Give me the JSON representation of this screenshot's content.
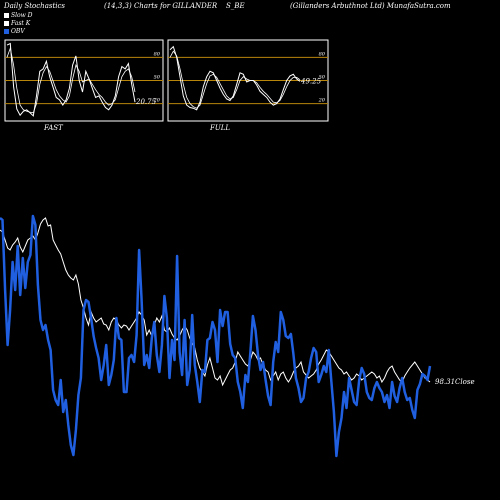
{
  "header": {
    "title_left": "Daily Stochastics",
    "title_params": "(14,3,3) Charts for GILLANDER",
    "title_symbol": "S_BE",
    "title_company": "(Gillanders Arbuthnot Ltd) MunafaSutra.com"
  },
  "legend": [
    {
      "label": "Slow  D",
      "color": "#ffffff"
    },
    {
      "label": "Fast K",
      "color": "#ffffff"
    },
    {
      "label": "OBV",
      "color": "#1f5fe0"
    }
  ],
  "colors": {
    "background": "#000000",
    "obv": "#1f5fe0",
    "price": "#ffffff",
    "bands": "#b8860b"
  },
  "chart_data": [
    {
      "type": "line",
      "panel": "FAST",
      "title": "FAST",
      "ylim": [
        0,
        100
      ],
      "ticks": [
        20,
        50,
        80
      ],
      "last_value_label": "20.75",
      "series": [
        {
          "name": "Fast K",
          "values": [
            96,
            98,
            42,
            13,
            5,
            10,
            12,
            8,
            4,
            30,
            62,
            65,
            75,
            55,
            42,
            28,
            25,
            18,
            25,
            40,
            70,
            82,
            50,
            35,
            62,
            52,
            40,
            28,
            30,
            22,
            15,
            12,
            18,
            30,
            55,
            68,
            65,
            72,
            45,
            22
          ]
        },
        {
          "name": "Slow  D",
          "values": [
            80,
            92,
            70,
            40,
            18,
            12,
            10,
            9,
            8,
            20,
            45,
            60,
            68,
            62,
            50,
            38,
            30,
            25,
            22,
            30,
            52,
            70,
            62,
            48,
            50,
            52,
            45,
            38,
            32,
            28,
            22,
            18,
            20,
            25,
            40,
            55,
            62,
            65,
            55,
            35
          ]
        }
      ]
    },
    {
      "type": "line",
      "panel": "FULL",
      "title": "FULL",
      "ylim": [
        0,
        100
      ],
      "ticks": [
        20,
        50,
        80
      ],
      "last_value_label": "49.25",
      "series": [
        {
          "name": "Full K",
          "values": [
            90,
            94,
            80,
            55,
            30,
            18,
            15,
            14,
            12,
            22,
            42,
            55,
            62,
            60,
            50,
            40,
            32,
            26,
            24,
            30,
            45,
            60,
            58,
            48,
            50,
            50,
            44,
            36,
            32,
            28,
            22,
            18,
            20,
            26,
            38,
            50,
            56,
            58,
            52,
            49
          ]
        },
        {
          "name": "Full D",
          "values": [
            80,
            88,
            82,
            65,
            45,
            28,
            20,
            16,
            14,
            18,
            32,
            46,
            56,
            58,
            54,
            46,
            38,
            30,
            26,
            28,
            38,
            50,
            55,
            52,
            50,
            50,
            47,
            41,
            36,
            32,
            27,
            22,
            21,
            24,
            32,
            42,
            50,
            54,
            54,
            51
          ]
        }
      ]
    },
    {
      "type": "line",
      "panel": "MAIN",
      "last_value_label": "98.31",
      "last_value_suffix": "Close",
      "series": [
        {
          "name": "OBV",
          "values": [
            218,
            220,
            290,
            345,
            310,
            262,
            290,
            246,
            295,
            258,
            288,
            262,
            255,
            216,
            225,
            285,
            320,
            330,
            325,
            340,
            350,
            390,
            400,
            405,
            380,
            412,
            400,
            425,
            445,
            455,
            430,
            395,
            378,
            310,
            300,
            302,
            318,
            336,
            348,
            358,
            380,
            365,
            345,
            385,
            375,
            360,
            318,
            338,
            340,
            392,
            392,
            358,
            355,
            362,
            335,
            250,
            300,
            365,
            355,
            368,
            338,
            322,
            355,
            372,
            345,
            296,
            318,
            378,
            340,
            360,
            256,
            352,
            375,
            320,
            385,
            370,
            315,
            365,
            382,
            402,
            370,
            372,
            340,
            338,
            322,
            330,
            362,
            310,
            326,
            312,
            312,
            344,
            355,
            358,
            382,
            392,
            408,
            375,
            382,
            352,
            316,
            330,
            355,
            370,
            362,
            380,
            396,
            405,
            362,
            342,
            352,
            312,
            320,
            336,
            338,
            334,
            354,
            378,
            388,
            402,
            398,
            378,
            372,
            358,
            348,
            352,
            382,
            375,
            366,
            372,
            350,
            382,
            412,
            456,
            432,
            418,
            392,
            408,
            378,
            390,
            402,
            405,
            380,
            368,
            374,
            392,
            398,
            400,
            388,
            382,
            388,
            392,
            402,
            395,
            408,
            382,
            396,
            402,
            388,
            378,
            392,
            400,
            398,
            410,
            418,
            390,
            384,
            374,
            376,
            380,
            366
          ]
        }
      ]
    },
    {
      "type": "line",
      "panel": "MAIN",
      "series": [
        {
          "name": "Price",
          "values": [
            230,
            232,
            240,
            248,
            250,
            245,
            242,
            238,
            247,
            252,
            246,
            240,
            238,
            236,
            240,
            233,
            224,
            220,
            218,
            226,
            225,
            240,
            245,
            250,
            254,
            262,
            270,
            275,
            278,
            280,
            275,
            284,
            300,
            308,
            318,
            325,
            312,
            318,
            322,
            320,
            318,
            324,
            325,
            330,
            322,
            318,
            320,
            325,
            328,
            325,
            326,
            330,
            326,
            322,
            318,
            312,
            315,
            320,
            335,
            330,
            336,
            325,
            318,
            322,
            316,
            330,
            332,
            328,
            334,
            338,
            340,
            336,
            330,
            326,
            330,
            338,
            344,
            348,
            360,
            368,
            372,
            376,
            365,
            358,
            368,
            378,
            380,
            376,
            385,
            380,
            375,
            370,
            368,
            362,
            352,
            356,
            360,
            364,
            366,
            360,
            352,
            355,
            360,
            358,
            365,
            370,
            372,
            380,
            376,
            372,
            380,
            374,
            372,
            378,
            382,
            378,
            372,
            368,
            366,
            362,
            372,
            375,
            378,
            376,
            374,
            370,
            364,
            360,
            355,
            350,
            352,
            356,
            360,
            364,
            368,
            370,
            374,
            372,
            376,
            380,
            378,
            374,
            376,
            380,
            378,
            376,
            374,
            372,
            374,
            378,
            376,
            382,
            378,
            372,
            368,
            366,
            372,
            376,
            380,
            382,
            376,
            372,
            368,
            365,
            362,
            366,
            370,
            374,
            378,
            380,
            382
          ]
        }
      ]
    }
  ]
}
